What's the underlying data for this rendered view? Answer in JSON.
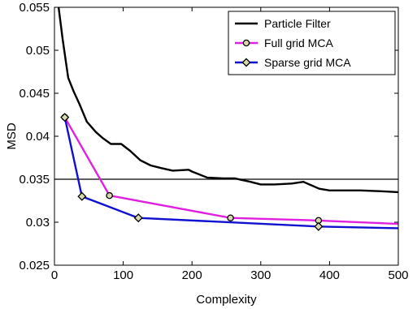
{
  "chart_data": {
    "type": "line",
    "title": "",
    "xlabel": "Complexity",
    "ylabel": "MSD",
    "xlim": [
      0,
      500
    ],
    "ylim": [
      0.025,
      0.055
    ],
    "xticks": [
      0,
      100,
      200,
      300,
      400,
      500
    ],
    "yticks": [
      0.025,
      0.03,
      0.035,
      0.04,
      0.045,
      0.05,
      0.055
    ],
    "xtick_labels": [
      "0",
      "100",
      "200",
      "300",
      "400",
      "500"
    ],
    "ytick_labels": [
      "0.025",
      "0.03",
      "0.035",
      "0.04",
      "0.045",
      "0.05",
      "0.055"
    ],
    "grid": false,
    "legend_position": "top-right",
    "reference_line": {
      "y": 0.035,
      "color": "#000000"
    },
    "series": [
      {
        "name": "Particle Filter",
        "color": "#000000",
        "marker": "none",
        "x": [
          6,
          12,
          20,
          28,
          36,
          47,
          60,
          70,
          82,
          97,
          110,
          125,
          140,
          155,
          172,
          195,
          200,
          222,
          245,
          262,
          285,
          300,
          320,
          345,
          362,
          385,
          400,
          445,
          475,
          500
        ],
        "y": [
          0.055,
          0.0512,
          0.0468,
          0.0452,
          0.0438,
          0.0417,
          0.0405,
          0.0398,
          0.0391,
          0.0391,
          0.0383,
          0.0372,
          0.0366,
          0.0363,
          0.036,
          0.0361,
          0.0359,
          0.0352,
          0.0351,
          0.0351,
          0.0347,
          0.0344,
          0.0344,
          0.0345,
          0.0347,
          0.0339,
          0.0337,
          0.0337,
          0.0336,
          0.0335
        ]
      },
      {
        "name": "Full grid MCA",
        "color": "#e020e0",
        "marker": "circle",
        "x": [
          15,
          80,
          256,
          384,
          500
        ],
        "y": [
          0.0422,
          0.0331,
          0.0305,
          0.0302,
          0.0298
        ],
        "marker_x": [
          15,
          80,
          256,
          384
        ],
        "marker_y": [
          0.0422,
          0.0331,
          0.0305,
          0.0302
        ]
      },
      {
        "name": "Sparse grid MCA",
        "color": "#1010d0",
        "marker": "diamond",
        "x": [
          15,
          40,
          122,
          384,
          500
        ],
        "y": [
          0.0422,
          0.033,
          0.0305,
          0.0295,
          0.0293
        ],
        "marker_x": [
          15,
          40,
          122,
          384
        ],
        "marker_y": [
          0.0422,
          0.033,
          0.0305,
          0.0295
        ]
      }
    ]
  }
}
